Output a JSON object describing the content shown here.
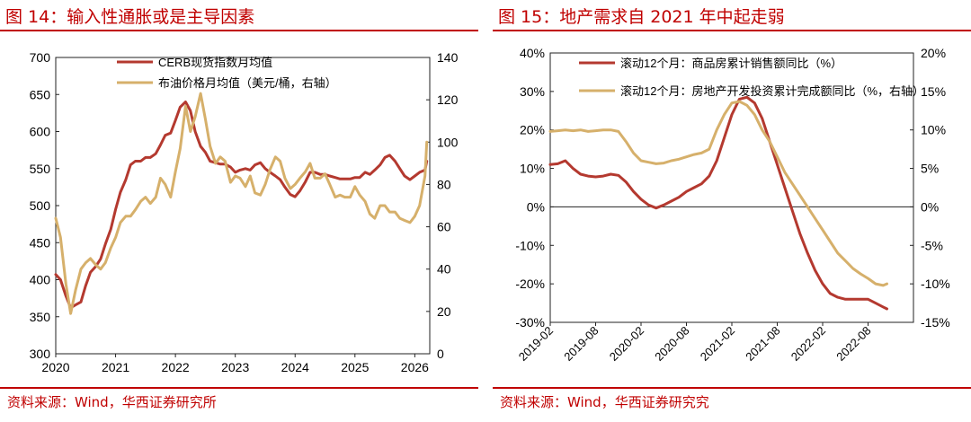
{
  "colors": {
    "accent": "#c00000",
    "series_red": "#b4392f",
    "series_gold": "#d6b06b"
  },
  "chart_data": [
    {
      "type": "line",
      "title": "图 14：输入性通胀或是主导因素",
      "source": "资料来源：Wind，华西证券研究所",
      "x_ticks": [
        "2020",
        "2021",
        "2022",
        "2023",
        "2024",
        "2025",
        "2026"
      ],
      "xlim": [
        2020.0,
        2026.25
      ],
      "y_left": {
        "lim": [
          300,
          700
        ],
        "ticks": [
          "300",
          "350",
          "400",
          "450",
          "500",
          "550",
          "600",
          "650",
          "700"
        ]
      },
      "y_right": {
        "lim": [
          0,
          140
        ],
        "ticks": [
          "0",
          "20",
          "40",
          "60",
          "80",
          "100",
          "120",
          "140"
        ]
      },
      "series": [
        {
          "name": "CERB现货指数月均值",
          "axis": "left",
          "color": "#b4392f",
          "points": [
            [
              2020.0,
              407
            ],
            [
              2020.08,
              400
            ],
            [
              2020.17,
              378
            ],
            [
              2020.25,
              362
            ],
            [
              2020.33,
              366
            ],
            [
              2020.42,
              370
            ],
            [
              2020.5,
              392
            ],
            [
              2020.58,
              410
            ],
            [
              2020.67,
              418
            ],
            [
              2020.75,
              428
            ],
            [
              2020.83,
              448
            ],
            [
              2020.92,
              468
            ],
            [
              2021.0,
              495
            ],
            [
              2021.08,
              518
            ],
            [
              2021.17,
              535
            ],
            [
              2021.25,
              555
            ],
            [
              2021.33,
              560
            ],
            [
              2021.42,
              560
            ],
            [
              2021.5,
              565
            ],
            [
              2021.58,
              565
            ],
            [
              2021.67,
              570
            ],
            [
              2021.75,
              582
            ],
            [
              2021.83,
              595
            ],
            [
              2021.92,
              598
            ],
            [
              2022.0,
              615
            ],
            [
              2022.08,
              633
            ],
            [
              2022.17,
              640
            ],
            [
              2022.25,
              628
            ],
            [
              2022.33,
              600
            ],
            [
              2022.42,
              580
            ],
            [
              2022.5,
              572
            ],
            [
              2022.58,
              560
            ],
            [
              2022.67,
              558
            ],
            [
              2022.75,
              556
            ],
            [
              2022.83,
              556
            ],
            [
              2022.92,
              552
            ],
            [
              2023.0,
              545
            ],
            [
              2023.08,
              548
            ],
            [
              2023.17,
              550
            ],
            [
              2023.25,
              548
            ],
            [
              2023.33,
              555
            ],
            [
              2023.42,
              558
            ],
            [
              2023.5,
              550
            ],
            [
              2023.58,
              545
            ],
            [
              2023.67,
              540
            ],
            [
              2023.75,
              535
            ],
            [
              2023.83,
              525
            ],
            [
              2023.92,
              515
            ],
            [
              2024.0,
              512
            ],
            [
              2024.08,
              520
            ],
            [
              2024.17,
              532
            ],
            [
              2024.25,
              545
            ],
            [
              2024.33,
              545
            ],
            [
              2024.42,
              542
            ],
            [
              2024.5,
              542
            ],
            [
              2024.58,
              540
            ],
            [
              2024.67,
              538
            ],
            [
              2024.75,
              536
            ],
            [
              2024.83,
              536
            ],
            [
              2024.92,
              536
            ],
            [
              2025.0,
              538
            ],
            [
              2025.08,
              538
            ],
            [
              2025.17,
              545
            ],
            [
              2025.25,
              542
            ],
            [
              2025.33,
              548
            ],
            [
              2025.42,
              555
            ],
            [
              2025.5,
              565
            ],
            [
              2025.58,
              568
            ],
            [
              2025.67,
              560
            ],
            [
              2025.75,
              550
            ],
            [
              2025.83,
              540
            ],
            [
              2025.92,
              535
            ],
            [
              2026.0,
              540
            ],
            [
              2026.08,
              545
            ],
            [
              2026.17,
              548
            ],
            [
              2026.2,
              560
            ]
          ]
        },
        {
          "name": "布油价格月均值（美元/桶，右轴）",
          "axis": "right",
          "color": "#d6b06b",
          "points": [
            [
              2020.0,
              64
            ],
            [
              2020.08,
              55
            ],
            [
              2020.17,
              33
            ],
            [
              2020.25,
              19
            ],
            [
              2020.33,
              30
            ],
            [
              2020.42,
              40
            ],
            [
              2020.5,
              43
            ],
            [
              2020.58,
              45
            ],
            [
              2020.67,
              42
            ],
            [
              2020.75,
              40
            ],
            [
              2020.83,
              43
            ],
            [
              2020.92,
              50
            ],
            [
              2021.0,
              55
            ],
            [
              2021.08,
              62
            ],
            [
              2021.17,
              65
            ],
            [
              2021.25,
              65
            ],
            [
              2021.33,
              68
            ],
            [
              2021.42,
              72
            ],
            [
              2021.5,
              74
            ],
            [
              2021.58,
              71
            ],
            [
              2021.67,
              74
            ],
            [
              2021.75,
              83
            ],
            [
              2021.83,
              80
            ],
            [
              2021.92,
              74
            ],
            [
              2022.0,
              86
            ],
            [
              2022.08,
              97
            ],
            [
              2022.17,
              117
            ],
            [
              2022.25,
              105
            ],
            [
              2022.33,
              112
            ],
            [
              2022.42,
              123
            ],
            [
              2022.5,
              111
            ],
            [
              2022.58,
              98
            ],
            [
              2022.67,
              90
            ],
            [
              2022.75,
              93
            ],
            [
              2022.83,
              91
            ],
            [
              2022.92,
              81
            ],
            [
              2023.0,
              84
            ],
            [
              2023.08,
              83
            ],
            [
              2023.17,
              79
            ],
            [
              2023.25,
              84
            ],
            [
              2023.33,
              76
            ],
            [
              2023.42,
              75
            ],
            [
              2023.5,
              80
            ],
            [
              2023.58,
              87
            ],
            [
              2023.67,
              93
            ],
            [
              2023.75,
              91
            ],
            [
              2023.83,
              83
            ],
            [
              2023.92,
              78
            ],
            [
              2024.0,
              80
            ],
            [
              2024.08,
              83
            ],
            [
              2024.17,
              86
            ],
            [
              2024.25,
              90
            ],
            [
              2024.33,
              83
            ],
            [
              2024.42,
              83
            ],
            [
              2024.5,
              85
            ],
            [
              2024.58,
              80
            ],
            [
              2024.67,
              74
            ],
            [
              2024.75,
              75
            ],
            [
              2024.83,
              74
            ],
            [
              2024.92,
              74
            ],
            [
              2025.0,
              79
            ],
            [
              2025.08,
              75
            ],
            [
              2025.17,
              72
            ],
            [
              2025.25,
              66
            ],
            [
              2025.33,
              64
            ],
            [
              2025.42,
              70
            ],
            [
              2025.5,
              70
            ],
            [
              2025.58,
              67
            ],
            [
              2025.67,
              67
            ],
            [
              2025.75,
              64
            ],
            [
              2025.83,
              63
            ],
            [
              2025.92,
              62
            ],
            [
              2026.0,
              65
            ],
            [
              2026.08,
              70
            ],
            [
              2026.17,
              84
            ],
            [
              2026.2,
              100
            ]
          ]
        }
      ]
    },
    {
      "type": "line",
      "title": "图 15：地产需求自 2021 年中起走弱",
      "source": "资料来源：Wind，华西证券研究究",
      "x_ticks": [
        "2019-02",
        "2019-08",
        "2020-02",
        "2020-08",
        "2021-02",
        "2021-08",
        "2022-02",
        "2022-08"
      ],
      "xlim": [
        0,
        48
      ],
      "y_left": {
        "lim": [
          -30,
          40
        ],
        "ticks": [
          "-30%",
          "-20%",
          "-10%",
          "0%",
          "10%",
          "20%",
          "30%",
          "40%"
        ]
      },
      "y_right": {
        "lim": [
          -15,
          20
        ],
        "ticks": [
          "-15%",
          "-10%",
          "-5%",
          "0%",
          "5%",
          "10%",
          "15%",
          "20%"
        ]
      },
      "series": [
        {
          "name": "滚动12个月：商品房累计销售额同比（%）",
          "axis": "left",
          "color": "#b4392f",
          "points": [
            [
              0,
              11
            ],
            [
              1,
              11.2
            ],
            [
              2,
              12
            ],
            [
              3,
              10
            ],
            [
              4,
              8.5
            ],
            [
              5,
              8
            ],
            [
              6,
              7.8
            ],
            [
              7,
              8
            ],
            [
              8,
              8.5
            ],
            [
              9,
              8.2
            ],
            [
              10,
              6.5
            ],
            [
              11,
              4
            ],
            [
              12,
              2
            ],
            [
              13,
              0.5
            ],
            [
              14,
              -0.3
            ],
            [
              15,
              0.5
            ],
            [
              16,
              1.5
            ],
            [
              17,
              2.5
            ],
            [
              18,
              4
            ],
            [
              19,
              5
            ],
            [
              20,
              6
            ],
            [
              21,
              8
            ],
            [
              22,
              12
            ],
            [
              23,
              18
            ],
            [
              24,
              24
            ],
            [
              25,
              28
            ],
            [
              26,
              28.5
            ],
            [
              27,
              27
            ],
            [
              28,
              23
            ],
            [
              29,
              17
            ],
            [
              30,
              11
            ],
            [
              31,
              5
            ],
            [
              32,
              -1
            ],
            [
              33,
              -7
            ],
            [
              34,
              -12
            ],
            [
              35,
              -16.5
            ],
            [
              36,
              -20
            ],
            [
              37,
              -22.5
            ],
            [
              38,
              -23.5
            ],
            [
              39,
              -24
            ],
            [
              40,
              -24
            ],
            [
              41,
              -24
            ],
            [
              42,
              -24
            ],
            [
              43,
              -25
            ],
            [
              44,
              -26
            ],
            [
              44.5,
              -26.5
            ]
          ]
        },
        {
          "name": "滚动12个月：房地产开发投资累计完成额同比（%，右轴）",
          "axis": "right",
          "color": "#d6b06b",
          "points": [
            [
              0,
              9.8
            ],
            [
              1,
              9.9
            ],
            [
              2,
              10
            ],
            [
              3,
              9.9
            ],
            [
              4,
              10
            ],
            [
              5,
              9.8
            ],
            [
              6,
              9.9
            ],
            [
              7,
              10
            ],
            [
              8,
              10
            ],
            [
              9,
              9.8
            ],
            [
              10,
              8.5
            ],
            [
              11,
              7
            ],
            [
              12,
              6
            ],
            [
              13,
              5.8
            ],
            [
              14,
              5.6
            ],
            [
              15,
              5.7
            ],
            [
              16,
              6
            ],
            [
              17,
              6.2
            ],
            [
              18,
              6.5
            ],
            [
              19,
              6.8
            ],
            [
              20,
              7
            ],
            [
              21,
              7.5
            ],
            [
              22,
              10
            ],
            [
              23,
              12
            ],
            [
              24,
              13.5
            ],
            [
              25,
              13.7
            ],
            [
              26,
              13.2
            ],
            [
              27,
              12
            ],
            [
              28,
              10
            ],
            [
              29,
              8.5
            ],
            [
              30,
              6.5
            ],
            [
              31,
              4.5
            ],
            [
              32,
              3
            ],
            [
              33,
              1.5
            ],
            [
              34,
              0
            ],
            [
              35,
              -1.5
            ],
            [
              36,
              -3
            ],
            [
              37,
              -4.5
            ],
            [
              38,
              -6
            ],
            [
              39,
              -7
            ],
            [
              40,
              -8
            ],
            [
              41,
              -8.7
            ],
            [
              42,
              -9.3
            ],
            [
              43,
              -10
            ],
            [
              44,
              -10.2
            ],
            [
              44.5,
              -10
            ]
          ]
        }
      ]
    }
  ]
}
